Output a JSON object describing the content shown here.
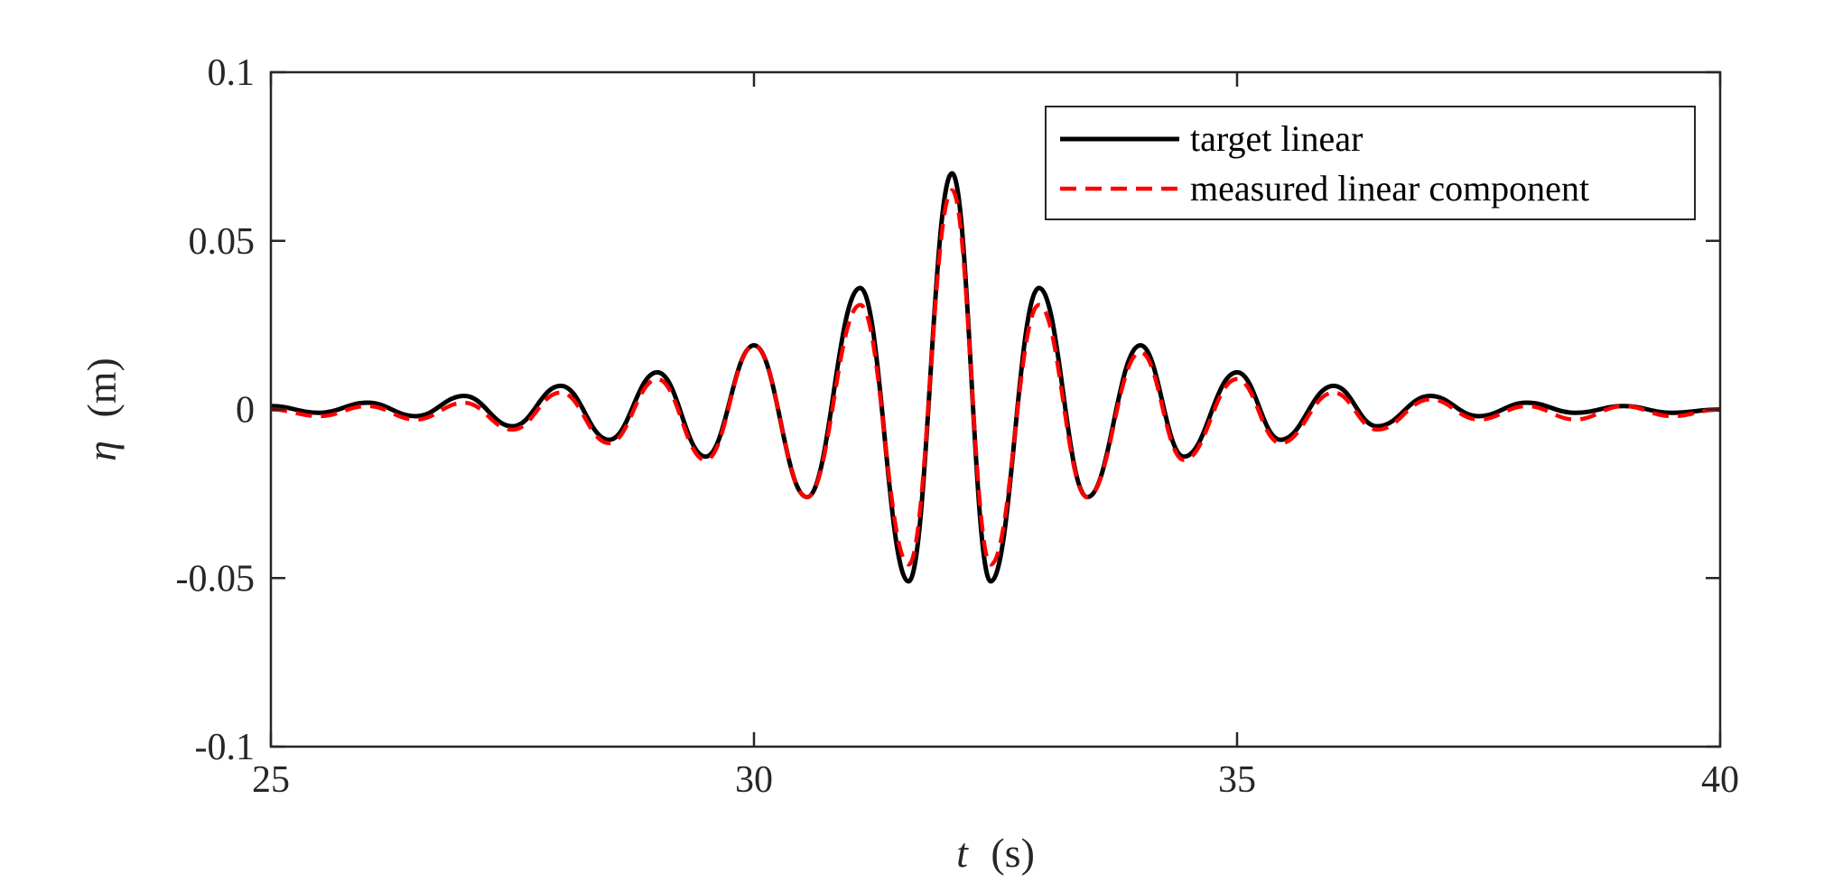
{
  "chart_data": {
    "type": "line",
    "title": "",
    "xlabel": {
      "var": "t",
      "unit": "(s)"
    },
    "ylabel": {
      "var": "η",
      "unit": "(m)"
    },
    "xlim": [
      25,
      40
    ],
    "ylim": [
      -0.1,
      0.1
    ],
    "xticks": [
      25,
      30,
      35,
      40
    ],
    "xtick_labels": [
      "25",
      "30",
      "35",
      "40"
    ],
    "yticks": [
      -0.1,
      -0.05,
      0,
      0.05,
      0.1
    ],
    "ytick_labels": [
      "-0.1",
      "-0.05",
      "0",
      "0.05",
      "0.1"
    ],
    "grid": false,
    "legend_position": "top-right",
    "series": [
      {
        "name": "target linear",
        "color": "#000000",
        "style": "solid",
        "x": [
          25,
          25.5,
          26,
          26.5,
          27,
          27.5,
          28,
          28.5,
          29,
          29.5,
          30,
          30.55,
          31.1,
          31.6,
          32.05,
          32.45,
          32.95,
          33.45,
          34,
          34.45,
          35,
          35.45,
          36,
          36.45,
          37,
          37.5,
          38,
          38.5,
          39,
          39.5,
          40
        ],
        "y": [
          0.001,
          -0.001,
          0.002,
          -0.002,
          0.004,
          -0.005,
          0.007,
          -0.009,
          0.011,
          -0.014,
          0.019,
          -0.026,
          0.036,
          -0.051,
          0.07,
          -0.051,
          0.036,
          -0.026,
          0.019,
          -0.014,
          0.011,
          -0.009,
          0.007,
          -0.005,
          0.004,
          -0.002,
          0.002,
          -0.001,
          0.001,
          -0.001,
          0.0
        ]
      },
      {
        "name": "measured linear component",
        "color": "#ff0000",
        "style": "dashed",
        "x": [
          25,
          25.5,
          26,
          26.5,
          27,
          27.5,
          28,
          28.5,
          29,
          29.5,
          30,
          30.55,
          31.1,
          31.6,
          32.05,
          32.45,
          32.95,
          33.45,
          34,
          34.45,
          35,
          35.45,
          36,
          36.45,
          37,
          37.5,
          38,
          38.5,
          39,
          39.5,
          40
        ],
        "y": [
          0.0,
          -0.002,
          0.001,
          -0.003,
          0.002,
          -0.006,
          0.005,
          -0.01,
          0.009,
          -0.015,
          0.019,
          -0.026,
          0.031,
          -0.046,
          0.065,
          -0.046,
          0.031,
          -0.026,
          0.017,
          -0.015,
          0.009,
          -0.01,
          0.005,
          -0.006,
          0.003,
          -0.003,
          0.001,
          -0.003,
          0.001,
          -0.002,
          0.0
        ]
      }
    ]
  }
}
